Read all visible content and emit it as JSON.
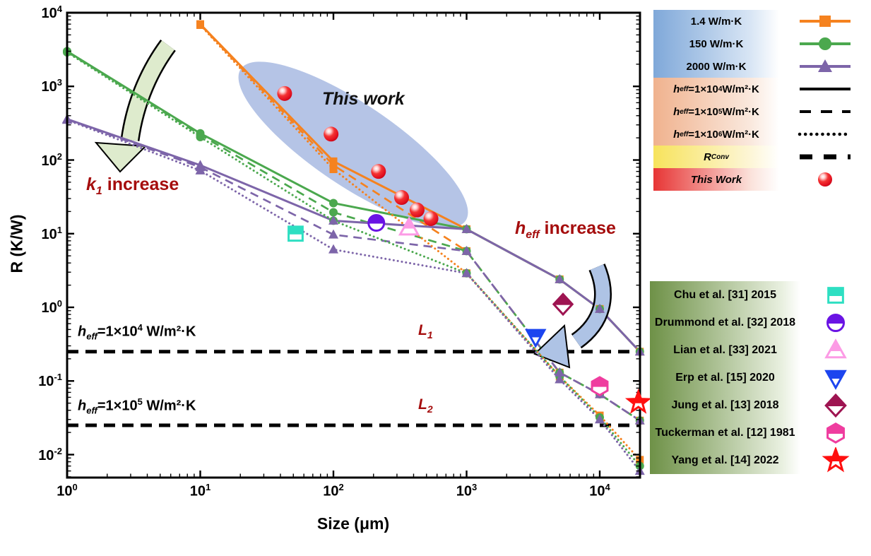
{
  "colors": {
    "orange": "#F5821F",
    "green": "#4BA84E",
    "purple": "#7D65A9",
    "black": "#000000",
    "annotation_red": "#A50D0D",
    "ellipse_blue": "#B5C4E6",
    "arrow_green_fill": "#DEEBCD",
    "arrow_blue_fill": "#AEC3E5",
    "this_work_red": "#E8112D"
  },
  "chart_data": {
    "type": "line",
    "xlabel": "Size (μm)",
    "ylabel": "R (K/W)",
    "xlim": [
      1,
      20000
    ],
    "ylim": [
      0.005,
      10000
    ],
    "x_scale": "log",
    "y_scale": "log",
    "grid": false,
    "x_ticks": [
      {
        "v": 1,
        "base": "10",
        "exp": "0"
      },
      {
        "v": 10,
        "base": "10",
        "exp": "1"
      },
      {
        "v": 100,
        "base": "10",
        "exp": "2"
      },
      {
        "v": 1000,
        "base": "10",
        "exp": "3"
      },
      {
        "v": 10000,
        "base": "10",
        "exp": "4"
      }
    ],
    "y_ticks": [
      {
        "v": 10000,
        "base": "10",
        "exp": "4"
      },
      {
        "v": 1000,
        "base": "10",
        "exp": "3"
      },
      {
        "v": 100,
        "base": "10",
        "exp": "2"
      },
      {
        "v": 10,
        "base": "10",
        "exp": "1"
      },
      {
        "v": 1,
        "base": "10",
        "exp": "0"
      },
      {
        "v": 0.1,
        "base": "10",
        "exp": "-1"
      },
      {
        "v": 0.01,
        "base": "10",
        "exp": "-2"
      }
    ],
    "series": [
      {
        "name": "k=1.4 W/m·K, h_eff=1e4",
        "color_key": "orange",
        "style": "solid",
        "marker": "square",
        "x": [
          10,
          100,
          1000,
          5000,
          10000,
          20000
        ],
        "y": [
          7000,
          96,
          11.5,
          2.4,
          0.95,
          0.25
        ]
      },
      {
        "name": "k=1.4 W/m·K, h_eff=1e5",
        "color_key": "orange",
        "style": "dashed",
        "marker": "square",
        "x": [
          10,
          100,
          1000,
          5000,
          10000,
          20000
        ],
        "y": [
          6900,
          85,
          5.8,
          0.13,
          0.066,
          0.029
        ]
      },
      {
        "name": "k=1.4 W/m·K, h_eff=1e6",
        "color_key": "orange",
        "style": "dotted",
        "marker": "square",
        "x": [
          10,
          100,
          1000,
          5000,
          10000,
          20000
        ],
        "y": [
          6800,
          75,
          2.9,
          0.115,
          0.034,
          0.0085
        ]
      },
      {
        "name": "k=150 W/m·K, h_eff=1e4",
        "color_key": "green",
        "style": "solid",
        "marker": "circle",
        "x": [
          1,
          10,
          100,
          1000,
          5000,
          10000,
          20000
        ],
        "y": [
          3000,
          230,
          26,
          11.5,
          2.4,
          0.95,
          0.25
        ]
      },
      {
        "name": "k=150 W/m·K, h_eff=1e5",
        "color_key": "green",
        "style": "dashed",
        "marker": "circle",
        "x": [
          1,
          10,
          100,
          1000,
          5000,
          10000,
          20000
        ],
        "y": [
          2950,
          220,
          19.5,
          5.8,
          0.13,
          0.066,
          0.029
        ]
      },
      {
        "name": "k=150 W/m·K, h_eff=1e6",
        "color_key": "green",
        "style": "dotted",
        "marker": "circle",
        "x": [
          1,
          10,
          100,
          1000,
          5000,
          10000,
          20000
        ],
        "y": [
          2900,
          205,
          15,
          2.9,
          0.115,
          0.032,
          0.007
        ]
      },
      {
        "name": "k=2000 W/m·K, h_eff=1e4",
        "color_key": "purple",
        "style": "solid",
        "marker": "triangle",
        "x": [
          1,
          10,
          100,
          1000,
          5000,
          10000,
          20000
        ],
        "y": [
          360,
          85,
          15,
          11.5,
          2.4,
          0.95,
          0.25
        ]
      },
      {
        "name": "k=2000 W/m·K, h_eff=1e5",
        "color_key": "purple",
        "style": "dashed",
        "marker": "triangle",
        "x": [
          1,
          10,
          100,
          1000,
          5000,
          10000,
          20000
        ],
        "y": [
          355,
          80,
          9.7,
          5.8,
          0.13,
          0.066,
          0.029
        ]
      },
      {
        "name": "k=2000 W/m·K, h_eff=1e6",
        "color_key": "purple",
        "style": "dotted",
        "marker": "triangle",
        "x": [
          1,
          10,
          100,
          1000,
          5000,
          10000,
          20000
        ],
        "y": [
          350,
          72,
          6.1,
          2.9,
          0.105,
          0.03,
          0.006
        ]
      }
    ],
    "this_work_points": {
      "label": "This work",
      "points": [
        [
          43,
          800
        ],
        [
          96,
          225
        ],
        [
          218,
          70
        ],
        [
          325,
          31
        ],
        [
          425,
          21
        ],
        [
          540,
          16
        ]
      ]
    },
    "literature_points": [
      {
        "name": "Chu et al. [31] 2015",
        "marker": "half-square",
        "color": "#2EDFC2",
        "x": 52,
        "y": 10
      },
      {
        "name": "Drummond et al. [32] 2018",
        "marker": "half-circle",
        "color": "#6A14E4",
        "x": 210,
        "y": 14
      },
      {
        "name": "Lian et al. [33] 2021",
        "marker": "half-triangle-up",
        "color": "#FC9BE5",
        "x": 370,
        "y": 12
      },
      {
        "name": "Erp et al. [15] 2020",
        "marker": "half-triangle-down",
        "color": "#1C45EF",
        "x": 3300,
        "y": 0.4
      },
      {
        "name": "Jung et al. [13] 2018",
        "marker": "half-diamond",
        "color": "#9E1451",
        "x": 5300,
        "y": 1.1
      },
      {
        "name": "Tuckerman et al. [12] 1981",
        "marker": "half-hexagon",
        "color": "#EF3D9F",
        "x": 10000,
        "y": 0.085
      },
      {
        "name": "Yang et al. [14] 2022",
        "marker": "star",
        "color": "#FF0F0F",
        "x": 19500,
        "y": 0.051
      }
    ],
    "hlines": [
      {
        "r": 0.25,
        "label": {
          "sym": "h",
          "sub": "eff",
          "eq": "=1×10",
          "exp": "4",
          "unit": " W/m²·K"
        },
        "tag": {
          "base": "L",
          "sub": "1"
        }
      },
      {
        "r": 0.025,
        "label": {
          "sym": "h",
          "sub": "eff",
          "eq": "=1×10",
          "exp": "5",
          "unit": " W/m²·K"
        },
        "tag": {
          "base": "L",
          "sub": "2"
        }
      }
    ]
  },
  "annotations": {
    "this_work": "This work",
    "k1": {
      "sym": "k",
      "sub": "1",
      "rest": " increase"
    },
    "heff_inc": {
      "sym": "h",
      "sub": "eff",
      "rest": " increase"
    }
  },
  "legend_top": {
    "groups": [
      {
        "bg": "blue",
        "rows": [
          {
            "label": "1.4 W/m·K",
            "symbol": "orange-square-line"
          },
          {
            "label": "150 W/m·K",
            "symbol": "green-circle-line"
          },
          {
            "label": "2000 W/m·K",
            "symbol": "purple-triangle-line"
          }
        ]
      },
      {
        "bg": "peach",
        "rows": [
          {
            "sym": "h",
            "sub": "eff",
            "eq": "=1×10",
            "exp": "4",
            "unit": " W/m²·K",
            "symbol": "solid-line"
          },
          {
            "sym": "h",
            "sub": "eff",
            "eq": "=1×10",
            "exp": "5",
            "unit": " W/m²·K",
            "symbol": "dashed-line"
          },
          {
            "sym": "h",
            "sub": "eff",
            "eq": "=1×10",
            "exp": "6",
            "unit": " W/m²·K",
            "symbol": "dotted-line"
          }
        ]
      },
      {
        "bg": "yellow",
        "rows": [
          {
            "sym": "R",
            "sub": "Conv",
            "eq": "",
            "exp": "",
            "unit": "",
            "symbol": "bold-dashed-line"
          }
        ]
      },
      {
        "bg": "red",
        "rows": [
          {
            "label": "This Work",
            "italic": true,
            "symbol": "red-sphere"
          }
        ]
      }
    ]
  },
  "legend_bottom": {
    "rows": [
      {
        "label": "Chu et al. [31] 2015",
        "marker": "half-square",
        "color": "#2EDFC2"
      },
      {
        "label": "Drummond et al. [32] 2018",
        "marker": "half-circle",
        "color": "#6A14E4"
      },
      {
        "label": "Lian et al. [33] 2021",
        "marker": "half-triangle-up",
        "color": "#FC9BE5"
      },
      {
        "label": "Erp et al. [15] 2020",
        "marker": "half-triangle-down",
        "color": "#1C45EF"
      },
      {
        "label": "Jung et al. [13] 2018",
        "marker": "half-diamond",
        "color": "#9E1451"
      },
      {
        "label": "Tuckerman et al. [12] 1981",
        "marker": "half-hexagon",
        "color": "#EF3D9F"
      },
      {
        "label": "Yang et al. [14] 2022",
        "marker": "star",
        "color": "#FF0F0F"
      }
    ]
  }
}
